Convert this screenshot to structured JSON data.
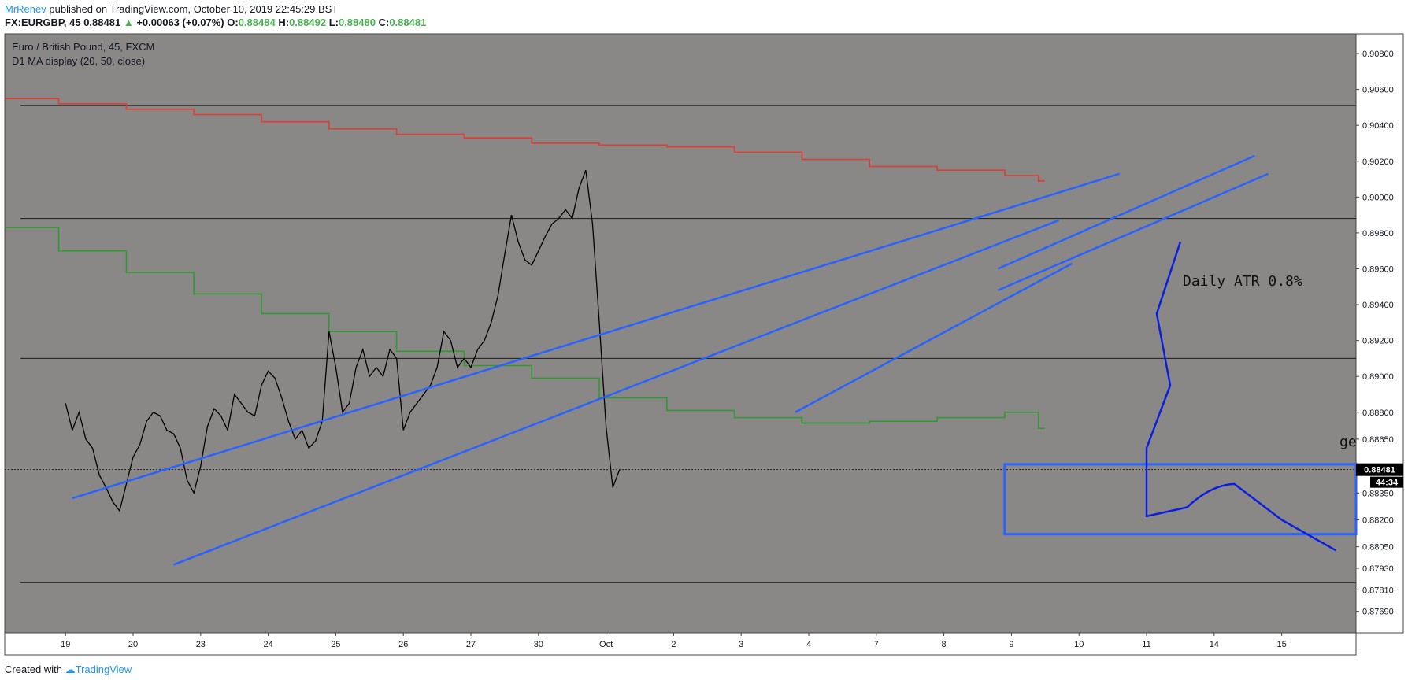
{
  "header": {
    "author": "MrRenev",
    "published": "published on TradingView.com, October 10, 2019 22:45:29 BST",
    "symbol": "FX:EURGBP, 45",
    "last": "0.88481",
    "change": "+0.00063 (+0.07%)",
    "o_label": "O:",
    "o": "0.88484",
    "h_label": "H:",
    "h": "0.88492",
    "l_label": "L:",
    "l": "0.88480",
    "c_label": "C:",
    "c": "0.88481"
  },
  "legend": {
    "title": "Euro / British Pound, 45, FXCM",
    "indicator": "D1 MA display (20, 50, close)"
  },
  "annotation": {
    "atr": "Daily ATR 0.8%",
    "partial": "ge"
  },
  "price_tag": {
    "price": "0.88481",
    "countdown": "44:34"
  },
  "footer": {
    "created": "Created with",
    "brand": "TradingView"
  },
  "colors": {
    "background": "#8a8886",
    "ma_fast": "#e23b31",
    "ma_slow": "#2f9a2f",
    "trendline": "#2962ff",
    "projection": "#0c1fe0",
    "candle": "#000000"
  },
  "chart_data": {
    "type": "line",
    "title": "Euro / British Pound, 45, FXCM",
    "ylim": [
      0.8757,
      0.9091
    ],
    "y_ticks": [
      "0.90800",
      "0.90600",
      "0.90400",
      "0.90200",
      "0.90000",
      "0.89800",
      "0.89600",
      "0.89400",
      "0.89200",
      "0.89000",
      "0.88800",
      "0.88650",
      "0.88350",
      "0.88200",
      "0.88050",
      "0.87930",
      "0.87810",
      "0.87690"
    ],
    "x_ticks": [
      "19",
      "20",
      "23",
      "24",
      "25",
      "26",
      "27",
      "30",
      "Oct",
      "2",
      "3",
      "4",
      "7",
      "8",
      "9",
      "10",
      "11",
      "14",
      "15"
    ],
    "xlim": [
      -0.9,
      19.1
    ],
    "series": [
      {
        "values": [
          0.8885,
          0.887,
          0.888,
          0.8865,
          0.886,
          0.8845,
          0.8838,
          0.883,
          0.8825,
          0.884,
          0.8855,
          0.8862,
          0.8875,
          0.888,
          0.8878,
          0.887,
          0.8868,
          0.886,
          0.8842,
          0.8835,
          0.885,
          0.8872,
          0.8882,
          0.8878,
          0.887,
          0.889,
          0.8885,
          0.888,
          0.8878,
          0.8895,
          0.8903,
          0.8899,
          0.8888,
          0.8875,
          0.8865,
          0.887,
          0.886,
          0.8864,
          0.8875,
          0.8925,
          0.8905,
          0.888,
          0.8885,
          0.8905,
          0.8915,
          0.89,
          0.8905,
          0.89,
          0.8915,
          0.891,
          0.887,
          0.888,
          0.8885,
          0.889,
          0.8895,
          0.8905,
          0.8925,
          0.892,
          0.8905,
          0.891,
          0.8905,
          0.8915,
          0.892,
          0.893,
          0.8945,
          0.8968,
          0.899,
          0.8975,
          0.8965,
          0.8962,
          0.897,
          0.8978,
          0.8985,
          0.8988,
          0.8993,
          0.8988,
          0.9005,
          0.9015,
          0.8985,
          0.893,
          0.8872,
          0.8838,
          0.8848
        ],
        "x_start": 0.0,
        "x_step": 0.1
      },
      {
        "name": "MA 20",
        "steps": [
          [
            -0.9,
            0.9055
          ],
          [
            -0.1,
            0.9052
          ],
          [
            0.9,
            0.9049
          ],
          [
            1.9,
            0.9046
          ],
          [
            2.9,
            0.9042
          ],
          [
            3.9,
            0.9038
          ],
          [
            4.9,
            0.9035
          ],
          [
            5.9,
            0.9033
          ],
          [
            6.9,
            0.903
          ],
          [
            7.9,
            0.9029
          ],
          [
            8.9,
            0.9028
          ],
          [
            9.9,
            0.9025
          ],
          [
            10.9,
            0.9021
          ],
          [
            11.9,
            0.9017
          ],
          [
            12.9,
            0.9015
          ],
          [
            13.9,
            0.9012
          ],
          [
            14.4,
            0.9009
          ]
        ]
      },
      {
        "name": "MA 50",
        "steps": [
          [
            -0.9,
            0.8983
          ],
          [
            -0.1,
            0.897
          ],
          [
            0.9,
            0.8958
          ],
          [
            1.9,
            0.8946
          ],
          [
            2.9,
            0.8935
          ],
          [
            3.9,
            0.8925
          ],
          [
            4.9,
            0.8914
          ],
          [
            5.9,
            0.8906
          ],
          [
            6.9,
            0.8899
          ],
          [
            7.9,
            0.8888
          ],
          [
            8.9,
            0.8881
          ],
          [
            9.9,
            0.8877
          ],
          [
            10.9,
            0.8874
          ],
          [
            11.9,
            0.8875
          ],
          [
            12.9,
            0.8877
          ],
          [
            13.9,
            0.888
          ],
          [
            14.4,
            0.8871
          ]
        ]
      }
    ],
    "horizontal_levels": [
      0.9051,
      0.8988,
      0.891,
      0.8785
    ],
    "trendlines": [
      [
        [
          0.1,
          0.8832
        ],
        [
          15.6,
          0.9013
        ]
      ],
      [
        [
          1.6,
          0.8795
        ],
        [
          14.7,
          0.8987
        ]
      ],
      [
        [
          10.8,
          0.888
        ],
        [
          14.9,
          0.8963
        ]
      ],
      [
        [
          13.8,
          0.896
        ],
        [
          17.6,
          0.9023
        ]
      ],
      [
        [
          13.8,
          0.8948
        ],
        [
          17.8,
          0.9013
        ]
      ]
    ],
    "projection": [
      [
        16.6,
        0.8827
      ],
      [
        17.3,
        0.884
      ],
      [
        18.0,
        0.882
      ],
      [
        18.8,
        0.8803
      ]
    ],
    "support_box": {
      "x": [
        13.9,
        19.1
      ],
      "y": [
        0.8812,
        0.8851
      ]
    }
  }
}
